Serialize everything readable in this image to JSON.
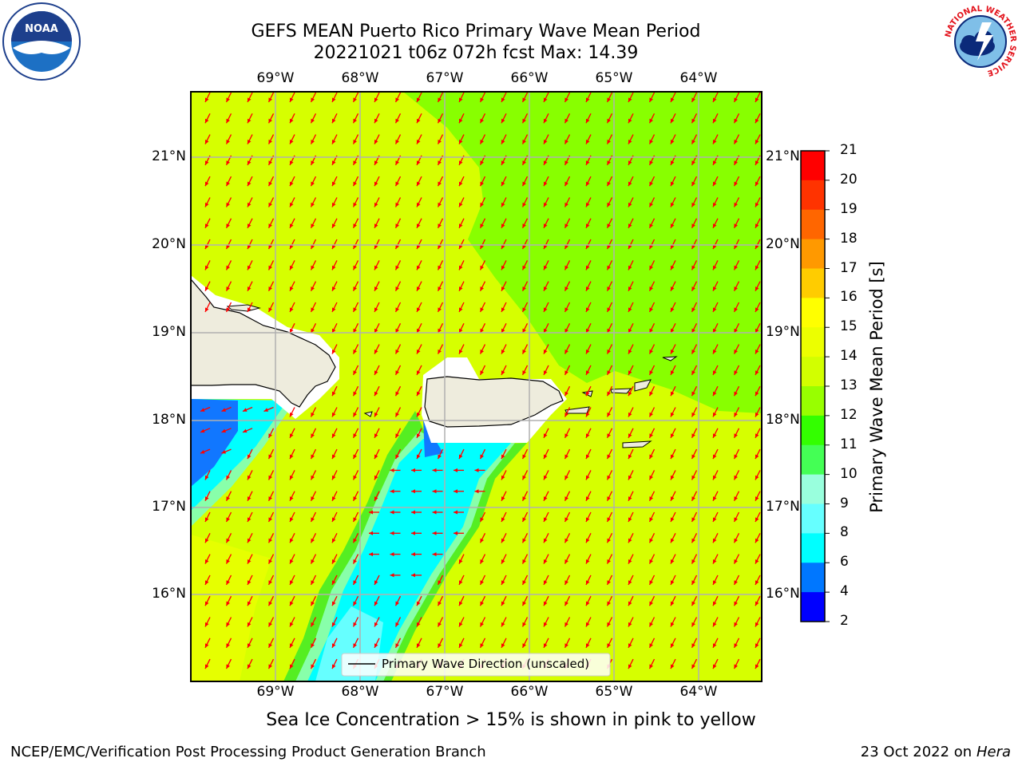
{
  "title_line1": "GEFS MEAN Puerto Rico Primary Wave Mean Period",
  "title_line2": "20221021 t06z 072h fcst   Max: 14.39",
  "map": {
    "lon_ticks": [
      "69°W",
      "68°W",
      "67°W",
      "66°W",
      "65°W",
      "64°W"
    ],
    "lat_ticks": [
      "21°N",
      "20°N",
      "19°N",
      "18°N",
      "17°N",
      "16°N"
    ],
    "legend_label": "Primary Wave Direction (unscaled)"
  },
  "colorbar": {
    "title": "Primary Wave Mean Period [s]",
    "ticks": [
      "21",
      "20",
      "19",
      "18",
      "17",
      "16",
      "15",
      "14",
      "13",
      "12",
      "11",
      "10",
      "9",
      "8",
      "6",
      "4",
      "2"
    ],
    "colors": [
      "#ff0000",
      "#ff3300",
      "#ff6600",
      "#ff9900",
      "#ffcc00",
      "#ffff00",
      "#ecff00",
      "#d2ff00",
      "#98ff00",
      "#33ff00",
      "#44ff55",
      "#99ffdd",
      "#66ffff",
      "#00ffff",
      "#0077ff",
      "#0000ff"
    ]
  },
  "colors": {
    "field_yellow": "#d6ff00",
    "field_green": "#88ff00",
    "cyan": "#00ffff",
    "blue": "#1177ff",
    "land": "#eeecdd",
    "arrow": "#ff0000"
  },
  "note": "Sea Ice Concentration > 15% is shown in pink to yellow",
  "footer_left": "NCEP/EMC/Verification Post Processing Product Generation Branch",
  "footer_right_prefix": "23 Oct 2022 on ",
  "footer_right_machine": "Hera",
  "logos": {
    "noaa": "NOAA",
    "nws": "NATIONAL WEATHER SERVICE"
  }
}
